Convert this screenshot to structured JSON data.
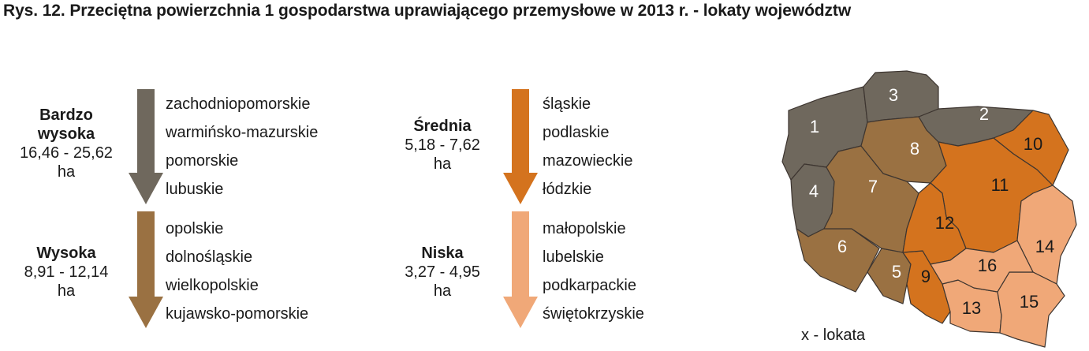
{
  "title": "Rys. 12.  Przeciętna powierzchnia 1 gospodarstwa uprawiającego przemysłowe w 2013 r. - lokaty województw",
  "categories": [
    {
      "name": "Bardzo wysoka",
      "name_line1": "Bardzo",
      "name_line2": "wysoka",
      "range": "16,46 - 25,62",
      "unit": "ha",
      "color": "#6f685d",
      "items": [
        "zachodniopomorskie",
        "warmińsko-mazurskie",
        "pomorskie",
        "lubuskie"
      ]
    },
    {
      "name": "Wysoka",
      "range": "8,91 - 12,14",
      "unit": "ha",
      "color": "#9a7142",
      "items": [
        "opolskie",
        "dolnośląskie",
        "wielkopolskie",
        "kujawsko-pomorskie"
      ]
    },
    {
      "name": "Średnia",
      "range": "5,18 - 7,62",
      "unit": "ha",
      "color": "#d4731e",
      "items": [
        "śląskie",
        "podlaskie",
        "mazowieckie",
        "łódzkie"
      ]
    },
    {
      "name": "Niska",
      "range": "3,27 - 4,95",
      "unit": "ha",
      "color": "#f0a878",
      "items": [
        "małopolskie",
        "lubelskie",
        "podkarpackie",
        "świętokrzyskie"
      ]
    }
  ],
  "map": {
    "regions": [
      {
        "rank": "1",
        "category": 0
      },
      {
        "rank": "2",
        "category": 0
      },
      {
        "rank": "3",
        "category": 0
      },
      {
        "rank": "4",
        "category": 0
      },
      {
        "rank": "5",
        "category": 1
      },
      {
        "rank": "6",
        "category": 1
      },
      {
        "rank": "7",
        "category": 1
      },
      {
        "rank": "8",
        "category": 1
      },
      {
        "rank": "9",
        "category": 2
      },
      {
        "rank": "10",
        "category": 2
      },
      {
        "rank": "11",
        "category": 2
      },
      {
        "rank": "12",
        "category": 2
      },
      {
        "rank": "13",
        "category": 3
      },
      {
        "rank": "14",
        "category": 3
      },
      {
        "rank": "15",
        "category": 3
      },
      {
        "rank": "16",
        "category": 3
      }
    ]
  },
  "legend": "x - lokata"
}
